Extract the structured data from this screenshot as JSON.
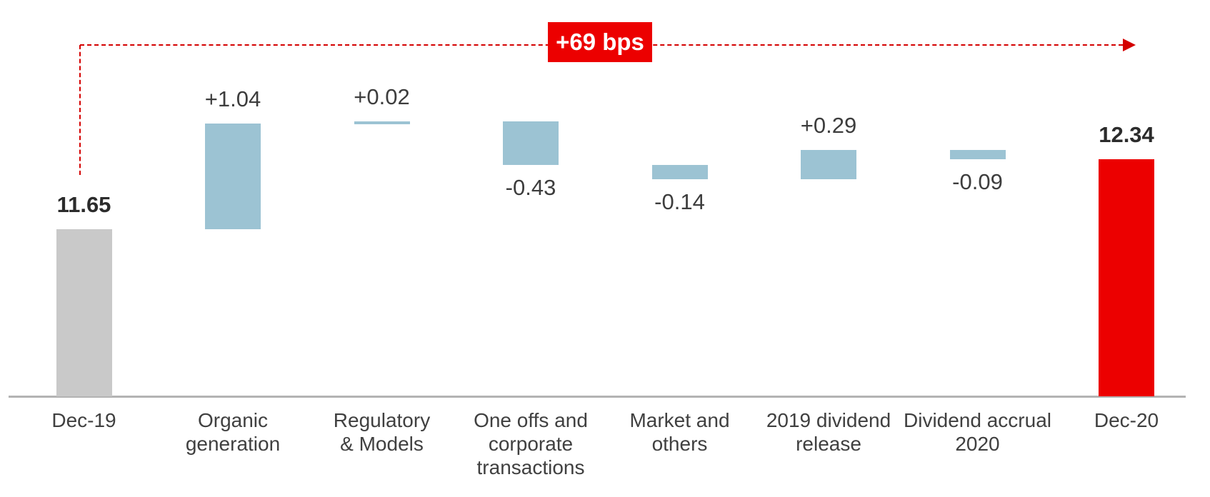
{
  "colors": {
    "start_bar": "#c9c9c9",
    "delta_bar": "#9cc3d3",
    "end_bar": "#ec0000",
    "badge_bg": "#ec0000",
    "badge_text": "#ffffff",
    "arrow": "#d40000",
    "axis_line": "#b3b3b3",
    "label_text": "#404040",
    "value_text": "#3d3d3d"
  },
  "chart_data": {
    "type": "bar",
    "subtype": "waterfall",
    "title": "",
    "badge_label": "+69 bps",
    "grid": false,
    "y_axis_visible": false,
    "implied_axis_min": 10,
    "categories": [
      "Dec-19",
      "Organic generation",
      "Regulatory & Models",
      "One offs and corporate transactions",
      "Market and others",
      "2019 dividend release",
      "Dividend accrual 2020",
      "Dec-20"
    ],
    "points": [
      {
        "key": "dec-19",
        "label_lines": [
          "Dec-19"
        ],
        "display": "11.65",
        "value": 11.65,
        "kind": "total",
        "label_pos": "above"
      },
      {
        "key": "organic-generation",
        "label_lines": [
          "Organic",
          "generation"
        ],
        "display": "+1.04",
        "value": 1.04,
        "kind": "delta",
        "label_pos": "above"
      },
      {
        "key": "regulatory-models",
        "label_lines": [
          "Regulatory",
          "& Models"
        ],
        "display": "+0.02",
        "value": 0.02,
        "kind": "delta",
        "label_pos": "above"
      },
      {
        "key": "one-offs",
        "label_lines": [
          "One offs and",
          "corporate",
          "transactions"
        ],
        "display": "-0.43",
        "value": -0.43,
        "kind": "delta",
        "label_pos": "below"
      },
      {
        "key": "market-others",
        "label_lines": [
          "Market and",
          "others"
        ],
        "display": "-0.14",
        "value": -0.14,
        "kind": "delta",
        "label_pos": "below"
      },
      {
        "key": "2019-dividend",
        "label_lines": [
          "2019 dividend",
          "release"
        ],
        "display": "+0.29",
        "value": 0.29,
        "kind": "delta",
        "label_pos": "above"
      },
      {
        "key": "dividend-accrual",
        "label_lines": [
          "Dividend accrual",
          "2020"
        ],
        "display": "-0.09",
        "value": -0.09,
        "kind": "delta",
        "label_pos": "below"
      },
      {
        "key": "dec-20",
        "label_lines": [
          "Dec-20"
        ],
        "display": "12.34",
        "value": 12.34,
        "kind": "total",
        "label_pos": "above"
      }
    ]
  }
}
